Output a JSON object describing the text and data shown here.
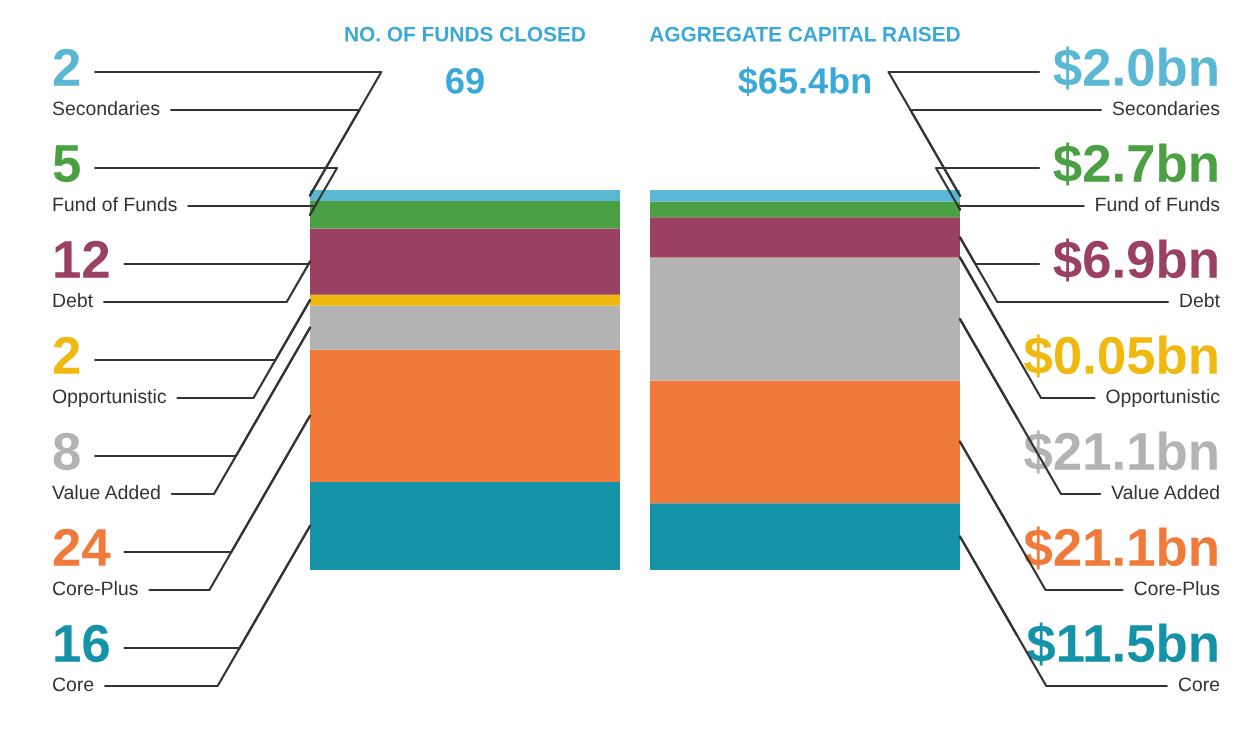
{
  "chart_data": [
    {
      "type": "bar",
      "stacked": true,
      "title": "NO. OF FUNDS CLOSED",
      "subtitle": "69",
      "categories": [
        null
      ],
      "tick_labels": false,
      "series": [
        {
          "name": "Core",
          "color": "#1493a8",
          "values": [
            16
          ],
          "value_labels": [
            "16"
          ]
        },
        {
          "name": "Core-Plus",
          "color": "#ef7a3a",
          "values": [
            24
          ],
          "value_labels": [
            "24"
          ]
        },
        {
          "name": "Value Added",
          "color": "#b3b3b3",
          "values": [
            8
          ],
          "value_labels": [
            "8"
          ]
        },
        {
          "name": "Opportunistic",
          "color": "#f0b90f",
          "values": [
            2
          ],
          "value_labels": [
            "2"
          ]
        },
        {
          "name": "Debt",
          "color": "#9a4063",
          "values": [
            12
          ],
          "value_labels": [
            "12"
          ]
        },
        {
          "name": "Fund of Funds",
          "color": "#4aa043",
          "values": [
            5
          ],
          "value_labels": [
            "5"
          ]
        },
        {
          "name": "Secondaries",
          "color": "#5bb8d4",
          "values": [
            2
          ],
          "value_labels": [
            "2"
          ]
        }
      ]
    },
    {
      "type": "bar",
      "stacked": true,
      "title": "AGGREGATE CAPITAL RAISED",
      "subtitle": "$65.4bn",
      "categories": [
        null
      ],
      "tick_labels": false,
      "series": [
        {
          "name": "Core",
          "color": "#1493a8",
          "values": [
            11.5
          ],
          "value_labels": [
            "$11.5bn"
          ]
        },
        {
          "name": "Core-Plus",
          "color": "#ef7a3a",
          "values": [
            21.1
          ],
          "value_labels": [
            "$21.1bn"
          ]
        },
        {
          "name": "Value Added",
          "color": "#b3b3b3",
          "values": [
            21.1
          ],
          "value_labels": [
            "$21.1bn"
          ]
        },
        {
          "name": "Opportunistic",
          "color": "#f0b90f",
          "values": [
            0.05
          ],
          "value_labels": [
            "$0.05bn"
          ]
        },
        {
          "name": "Debt",
          "color": "#9a4063",
          "values": [
            6.9
          ],
          "value_labels": [
            "$6.9bn"
          ]
        },
        {
          "name": "Fund of Funds",
          "color": "#4aa043",
          "values": [
            2.7
          ],
          "value_labels": [
            "$2.7bn"
          ]
        },
        {
          "name": "Secondaries",
          "color": "#5bb8d4",
          "values": [
            2.0
          ],
          "value_labels": [
            "$2.0bn"
          ]
        }
      ]
    }
  ]
}
